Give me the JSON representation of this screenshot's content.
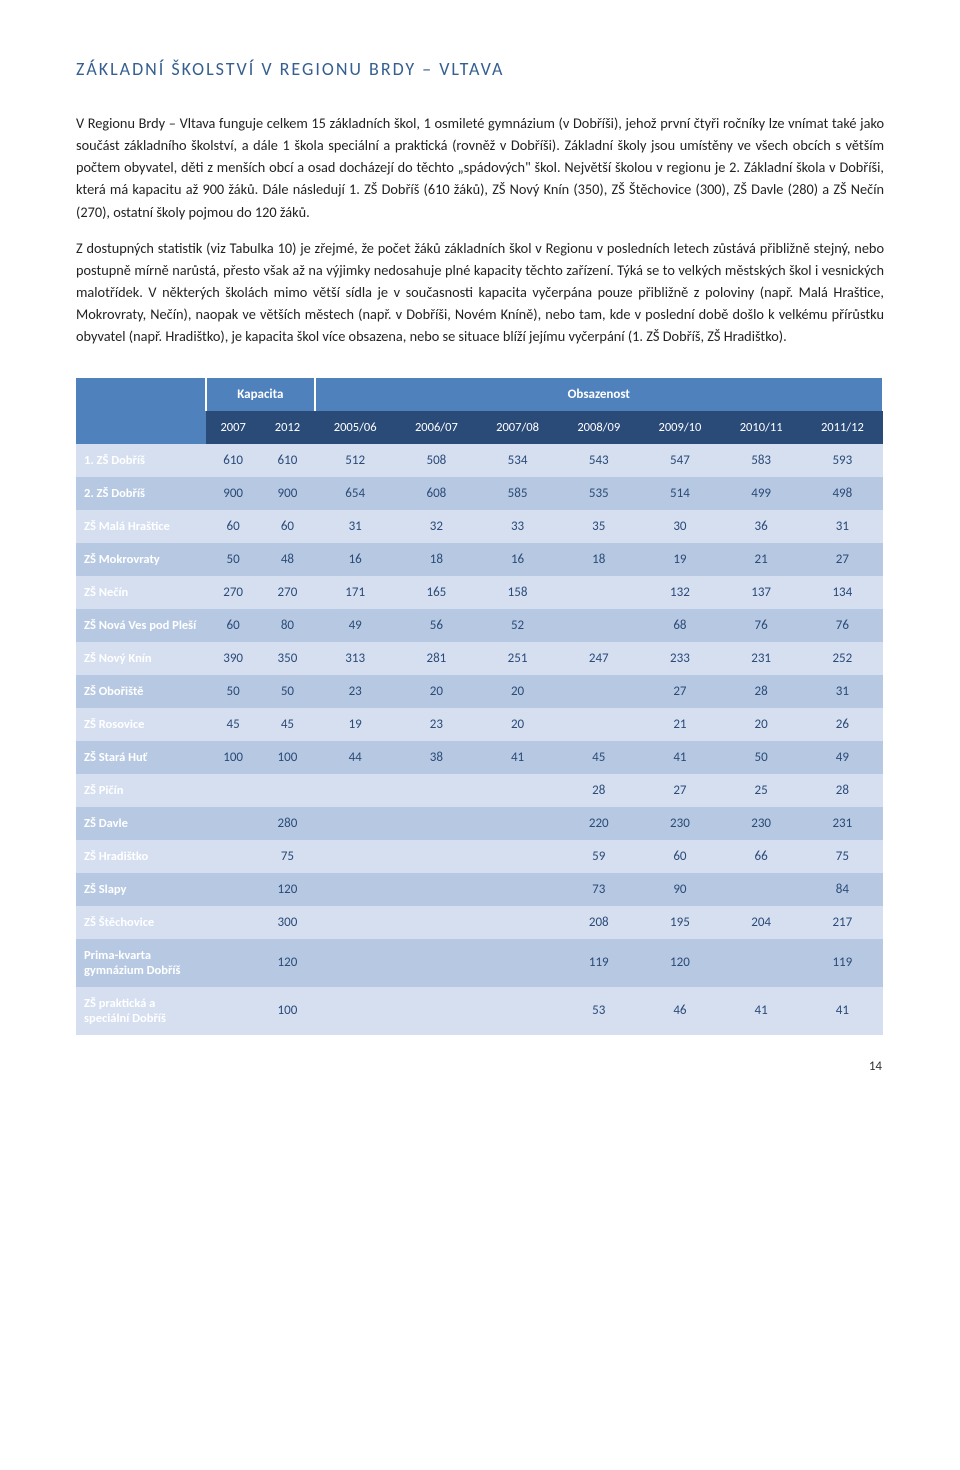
{
  "title": "ZÁKLADNÍ ŠKOLSTVÍ V REGIONU BRDY – VLTAVA",
  "para1": "V Regionu Brdy – Vltava funguje celkem 15 základních škol, 1 osmileté gymnázium (v Dobříši), jehož první čtyři ročníky lze vnímat také jako součást základního školství, a dále 1 škola speciální a praktická (rovněž v Dobříši). Základní školy jsou umístěny ve všech obcích s větším počtem obyvatel, děti z menších obcí a osad docházejí do těchto „spádových\" škol. Největší školou v regionu je 2. Základní škola v Dobříši, která má kapacitu až 900 žáků. Dále následují 1. ZŠ Dobříš (610 žáků), ZŠ Nový Knín (350), ZŠ Štěchovice (300), ZŠ Davle (280) a ZŠ Nečín (270), ostatní školy pojmou do 120 žáků.",
  "para2": "Z dostupných statistik (viz Tabulka 10) je zřejmé, že počet žáků základních škol v Regionu v posledních letech zůstává přibližně stejný, nebo postupně mírně narůstá, přesto však až na výjimky nedosahuje plné kapacity těchto zařízení. Týká se to velkých městských škol i vesnických malotřídek. V některých školách mimo větší sídla je v současnosti kapacita vyčerpána pouze přibližně z poloviny (např. Malá Hraštice, Mokrovraty, Nečín), naopak ve větších městech (např. v Dobříši, Novém Kníně), nebo tam, kde v poslední době došlo k velkému přírůstku obyvatel (např. Hradištko), je kapacita škol více obsazena, nebo se situace blíží jejímu vyčerpání (1. ZŠ Dobříš, ZŠ Hradištko).",
  "table": {
    "header1": [
      "",
      "Kapacita",
      "Obsazenost"
    ],
    "header2": [
      "",
      "2007",
      "2012",
      "2005/06",
      "2006/07",
      "2007/08",
      "2008/09",
      "2009/10",
      "2010/11",
      "2011/12"
    ],
    "rows": [
      {
        "label": "1. ZŠ Dobříš",
        "cells": [
          "610",
          "610",
          "512",
          "508",
          "534",
          "543",
          "547",
          "583",
          "593"
        ]
      },
      {
        "label": "2. ZŠ Dobříš",
        "cells": [
          "900",
          "900",
          "654",
          "608",
          "585",
          "535",
          "514",
          "499",
          "498"
        ]
      },
      {
        "label": "ZŠ Malá Hraštice",
        "cells": [
          "60",
          "60",
          "31",
          "32",
          "33",
          "35",
          "30",
          "36",
          "31"
        ]
      },
      {
        "label": "ZŠ Mokrovraty",
        "cells": [
          "50",
          "48",
          "16",
          "18",
          "16",
          "18",
          "19",
          "21",
          "27"
        ]
      },
      {
        "label": "ZŠ Nečín",
        "cells": [
          "270",
          "270",
          "171",
          "165",
          "158",
          "",
          "132",
          "137",
          "134"
        ]
      },
      {
        "label": "ZŠ Nová Ves pod Pleší",
        "cells": [
          "60",
          "80",
          "49",
          "56",
          "52",
          "",
          "68",
          "76",
          "76"
        ]
      },
      {
        "label": "ZŠ Nový Knín",
        "cells": [
          "390",
          "350",
          "313",
          "281",
          "251",
          "247",
          "233",
          "231",
          "252"
        ]
      },
      {
        "label": "ZŠ Obořiště",
        "cells": [
          "50",
          "50",
          "23",
          "20",
          "20",
          "",
          "27",
          "28",
          "31"
        ]
      },
      {
        "label": "ZŠ Rosovice",
        "cells": [
          "45",
          "45",
          "19",
          "23",
          "20",
          "",
          "21",
          "20",
          "26"
        ]
      },
      {
        "label": "ZŠ Stará Huť",
        "cells": [
          "100",
          "100",
          "44",
          "38",
          "41",
          "45",
          "41",
          "50",
          "49"
        ]
      },
      {
        "label": "ZŠ Pičín",
        "cells": [
          "",
          "",
          "",
          "",
          "",
          "28",
          "27",
          "25",
          "28"
        ]
      },
      {
        "label": "ZŠ Davle",
        "cells": [
          "",
          "280",
          "",
          "",
          "",
          "220",
          "230",
          "230",
          "231"
        ]
      },
      {
        "label": "ZŠ Hradištko",
        "cells": [
          "",
          "75",
          "",
          "",
          "",
          "59",
          "60",
          "66",
          "75"
        ]
      },
      {
        "label": "ZŠ Slapy",
        "cells": [
          "",
          "120",
          "",
          "",
          "",
          "73",
          "90",
          "",
          "84"
        ]
      },
      {
        "label": "ZŠ Štěchovice",
        "cells": [
          "",
          "300",
          "",
          "",
          "",
          "208",
          "195",
          "204",
          "217"
        ]
      },
      {
        "label": "Prima-kvarta gymnázium Dobříš",
        "cells": [
          "",
          "120",
          "",
          "",
          "",
          "119",
          "120",
          "",
          "119"
        ]
      },
      {
        "label": "ZŠ praktická a speciální Dobříš",
        "cells": [
          "",
          "100",
          "",
          "",
          "",
          "53",
          "46",
          "41",
          "41"
        ]
      }
    ]
  },
  "colors": {
    "heading": "#355f91",
    "table_header_main": "#4f81bd",
    "table_header_years": "#2a4a78",
    "row_light": "#d5dff0",
    "row_dark": "#b7c9e2",
    "cell_text": "#2a4a78"
  },
  "page_number": "14"
}
